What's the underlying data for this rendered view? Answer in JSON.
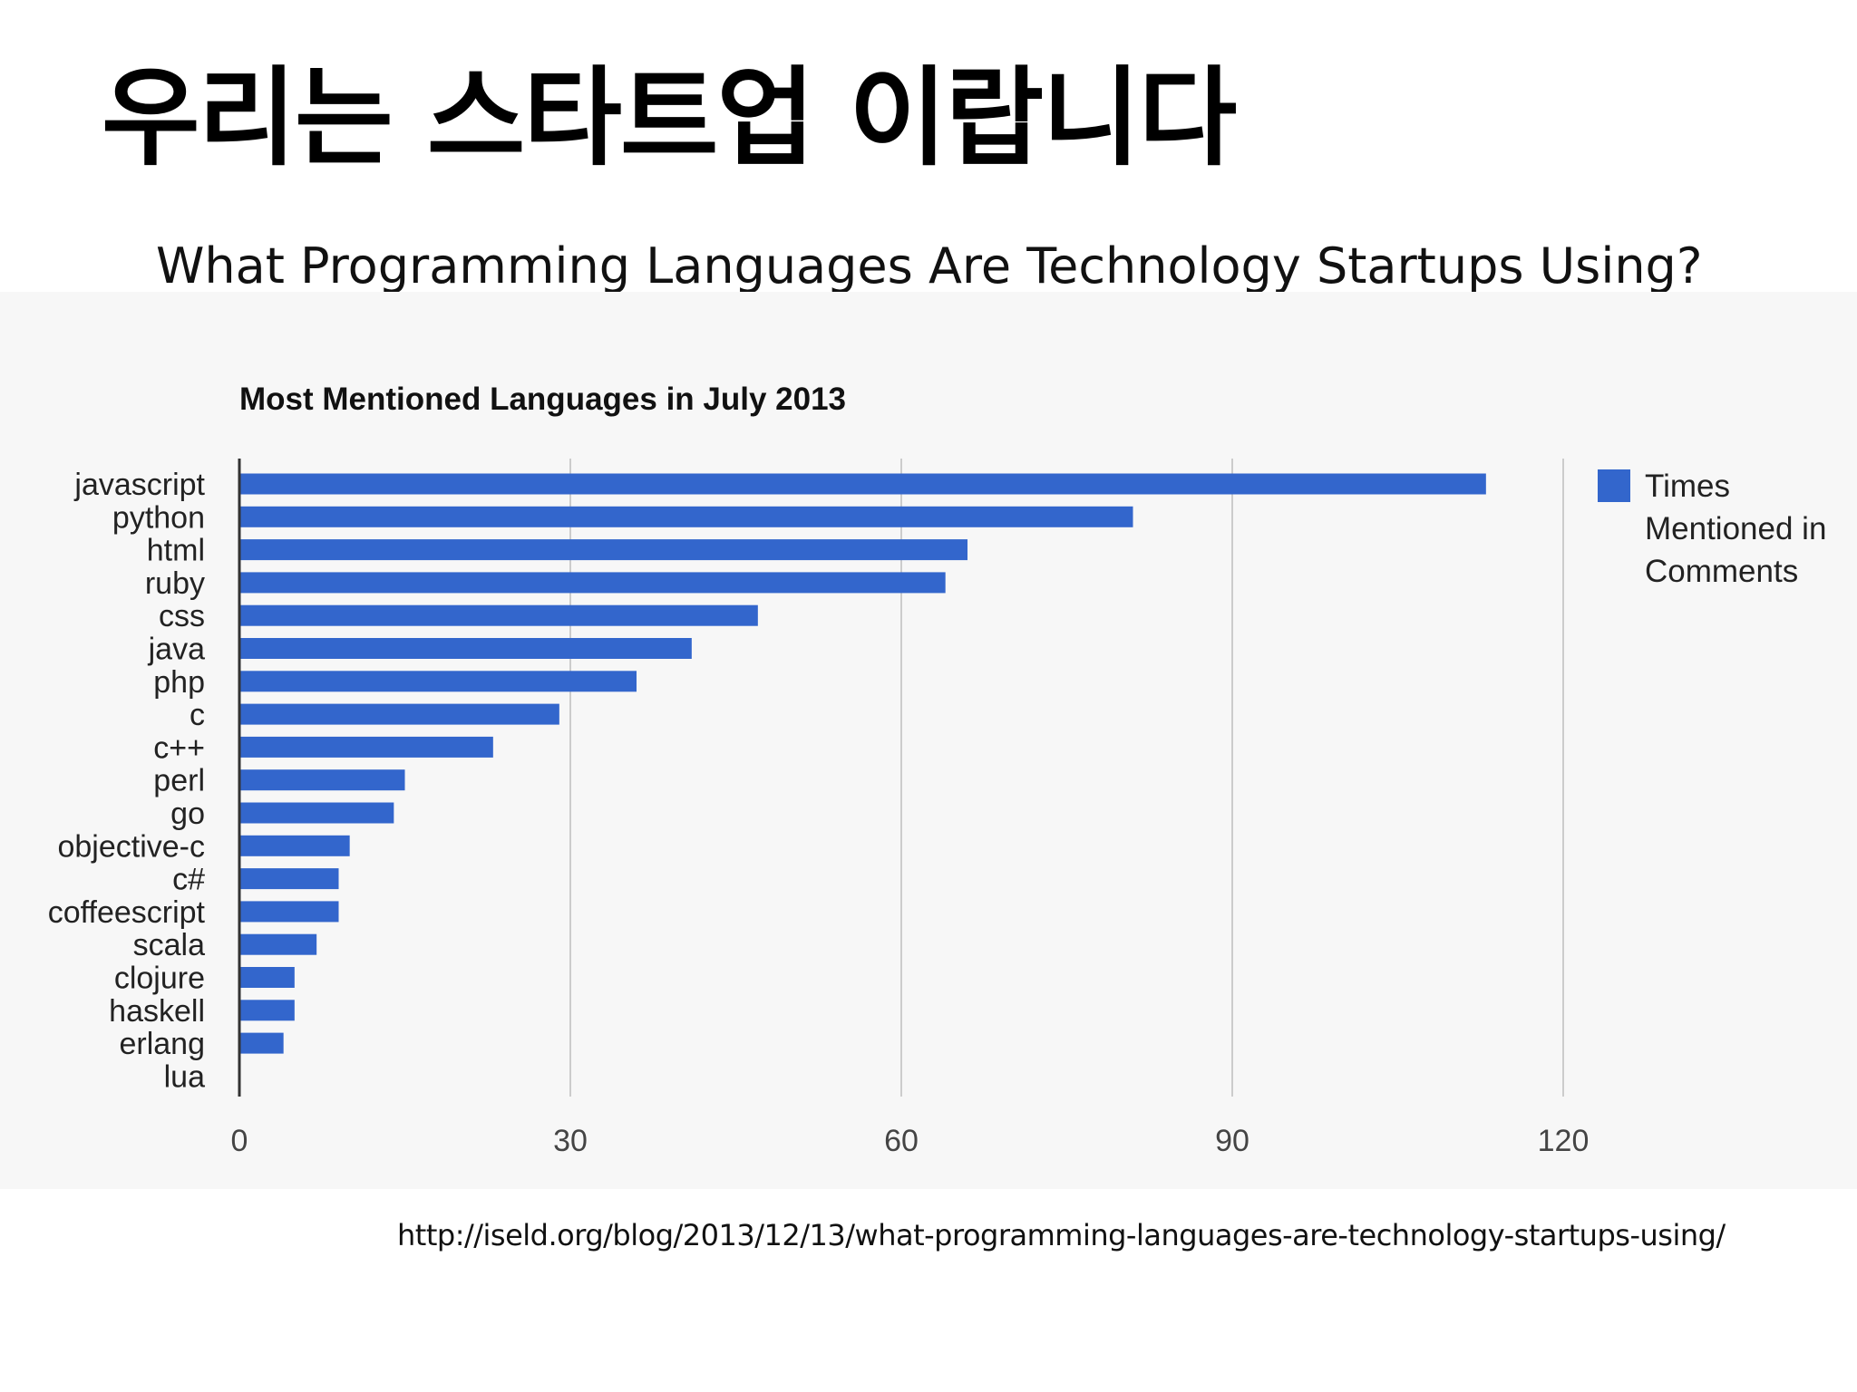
{
  "slide": {
    "title": "우리는 스타트업 이랍니다",
    "subtitle": "What Programming Languages Are Technology Startups Using?",
    "source_url": "http://iseld.org/blog/2013/12/13/what-programming-languages-are-technology-startups-using/"
  },
  "colors": {
    "bar": "#3366cc",
    "grid": "#cccccc",
    "panel_bg": "#f7f7f7"
  },
  "chart_data": {
    "type": "bar",
    "orientation": "horizontal",
    "title": "Most Mentioned Languages in July 2013",
    "categories": [
      "javascript",
      "python",
      "html",
      "ruby",
      "css",
      "java",
      "php",
      "c",
      "c++",
      "perl",
      "go",
      "objective-c",
      "c#",
      "coffeescript",
      "scala",
      "clojure",
      "haskell",
      "erlang",
      "lua"
    ],
    "series": [
      {
        "name": "Times Mentioned in Comments",
        "legend_lines": [
          "Times",
          "Mentioned in",
          "Comments"
        ],
        "values": [
          113,
          81,
          66,
          64,
          47,
          41,
          36,
          29,
          23,
          15,
          14,
          10,
          9,
          9,
          7,
          5,
          5,
          4,
          0
        ]
      }
    ],
    "xlim": [
      0,
      120
    ],
    "xticks": [
      "0",
      "30",
      "60",
      "90",
      "120"
    ],
    "grid": true,
    "legend_position": "right"
  }
}
